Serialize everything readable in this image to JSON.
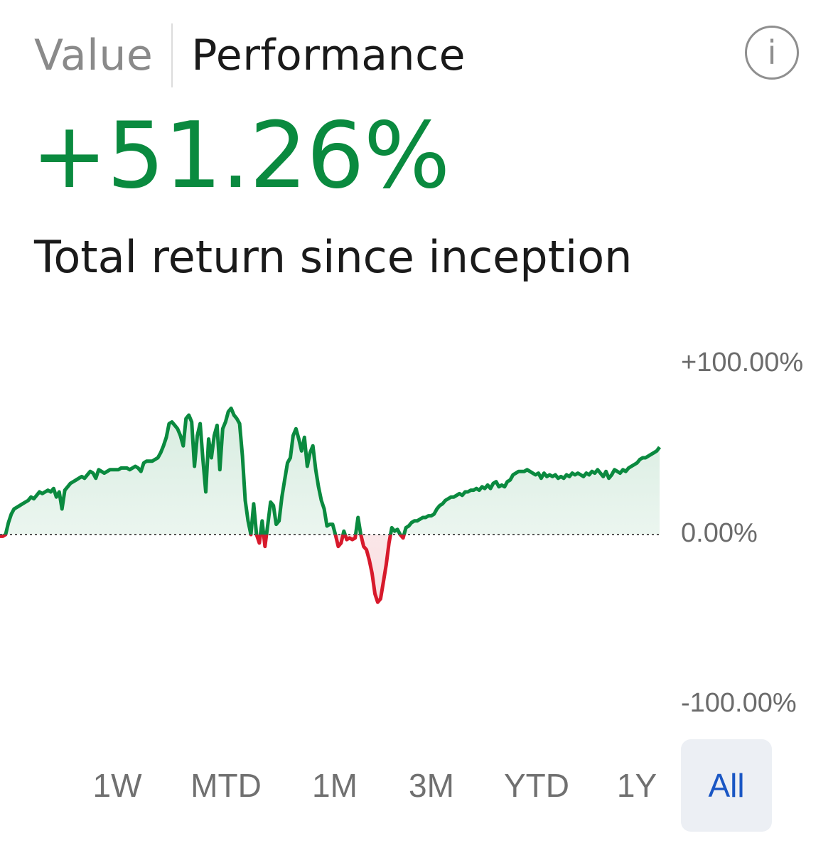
{
  "tabs": [
    {
      "label": "Value",
      "active": false
    },
    {
      "label": "Performance",
      "active": true
    }
  ],
  "info_icon": "info-icon",
  "summary": {
    "total_return": "+51.26%",
    "subtitle": "Total return since inception"
  },
  "colors": {
    "positive": "#0a8a3f",
    "negative": "#d7192b",
    "active_range": "#1a56c4"
  },
  "chart_data": {
    "type": "line",
    "y_ticks": [
      "+100.00%",
      "0.00%",
      "-100.00%"
    ],
    "ylim": [
      -100,
      100
    ],
    "baseline": 0,
    "final_value": 51.26,
    "values": [
      -1,
      -1,
      0,
      7,
      12,
      15,
      16,
      17,
      18,
      19,
      20,
      22,
      21,
      23,
      25,
      24,
      25,
      26,
      25,
      27,
      22,
      25,
      15,
      26,
      28,
      30,
      31,
      32,
      33,
      34,
      33,
      35,
      37,
      36,
      33,
      38,
      37,
      36,
      37,
      38,
      38,
      38,
      38,
      39,
      39,
      39,
      38,
      39,
      40,
      39,
      37,
      42,
      43,
      43,
      43,
      44,
      45,
      48,
      52,
      57,
      65,
      66,
      64,
      62,
      58,
      52,
      68,
      70,
      66,
      40,
      58,
      65,
      44,
      25,
      56,
      45,
      58,
      64,
      38,
      62,
      66,
      72,
      74,
      70,
      68,
      65,
      46,
      20,
      8,
      0,
      18,
      0,
      -5,
      8,
      -7,
      6,
      19,
      17,
      6,
      8,
      22,
      32,
      42,
      45,
      58,
      62,
      56,
      49,
      57,
      40,
      48,
      52,
      38,
      28,
      20,
      15,
      5,
      6,
      6,
      0,
      -7,
      -5,
      2,
      -3,
      -2,
      -3,
      -2,
      10,
      0,
      -7,
      -9,
      -15,
      -23,
      -35,
      -40,
      -38,
      -28,
      -18,
      -5,
      4,
      2,
      3,
      0,
      -2,
      4,
      5,
      7,
      8,
      8,
      9,
      10,
      10,
      11,
      11,
      12,
      15,
      17,
      18,
      20,
      21,
      22,
      22,
      23,
      24,
      23,
      25,
      25,
      26,
      26,
      27,
      26,
      28,
      27,
      29,
      27,
      30,
      31,
      28,
      29,
      28,
      31,
      32,
      35,
      36,
      37,
      37,
      37,
      38,
      37,
      36,
      35,
      36,
      33,
      36,
      34,
      35,
      34,
      35,
      33,
      34,
      33,
      35,
      34,
      36,
      35,
      36,
      35,
      34,
      36,
      35,
      37,
      36,
      38,
      36,
      34,
      37,
      33,
      35,
      38,
      37,
      36,
      38,
      37,
      39,
      40,
      41,
      42,
      44,
      45,
      45,
      46,
      47,
      48,
      49,
      51.26
    ]
  },
  "ranges": [
    {
      "label": "1W",
      "active": false
    },
    {
      "label": "MTD",
      "active": false
    },
    {
      "label": "1M",
      "active": false
    },
    {
      "label": "3M",
      "active": false
    },
    {
      "label": "YTD",
      "active": false
    },
    {
      "label": "1Y",
      "active": false
    },
    {
      "label": "All",
      "active": true
    }
  ]
}
